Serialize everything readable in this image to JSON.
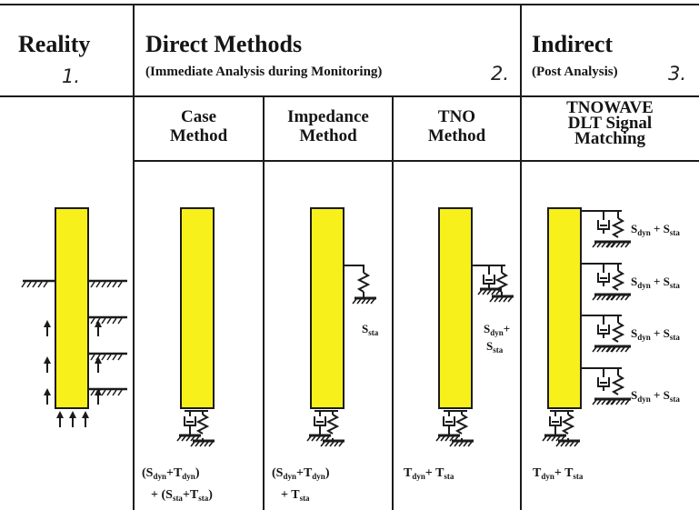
{
  "columns": {
    "reality": {
      "title": "Reality",
      "number": "1."
    },
    "direct": {
      "title": "Direct Methods",
      "subtitle": "(Immediate Analysis during Monitoring)",
      "number": "2."
    },
    "indirect": {
      "title": "Indirect",
      "subtitle": "(Post Analysis)",
      "number": "3."
    }
  },
  "methods": {
    "case": {
      "line1": "Case",
      "line2": "Method"
    },
    "impedance": {
      "line1": "Impedance",
      "line2": "Method"
    },
    "tno": {
      "line1": "TNO",
      "line2": "Method"
    },
    "tnowave": {
      "line1": "TNOWAVE",
      "line2": "DLT Signal",
      "line3": "Matching"
    }
  },
  "formulas": {
    "case_1": "(S",
    "case_2": "+T",
    "case_3": ")",
    "case_4": "+ (S",
    "case_5": "+T",
    "case_6": ")",
    "impedance_1": "(S",
    "impedance_2": "+T",
    "impedance_3": ")",
    "impedance_4": "+ T",
    "tno_1": "T",
    "tno_2": "+ T",
    "tnowave_1": "T",
    "tnowave_2": "+ T"
  },
  "subscripts": {
    "dyn": "dyn",
    "sta": "sta"
  },
  "spring_labels": {
    "impedance": "S",
    "tno_top": "S",
    "tno_plus": "+",
    "tno_bottom": "S",
    "tnowave_prefix": "S",
    "tnowave_mid": "+ S"
  },
  "colors": {
    "pile": "#f8f01a",
    "line": "#1b1b1b",
    "background": "#ffffff"
  }
}
